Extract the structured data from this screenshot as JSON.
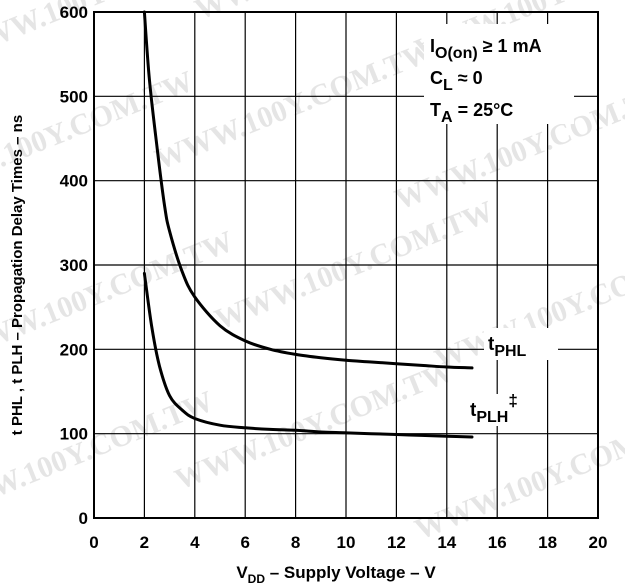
{
  "chart_data": {
    "type": "line",
    "title": "",
    "xlabel": {
      "main": "V",
      "sub": "DD",
      "rest": " – Supply Voltage – V"
    },
    "ylabel": "t PHL , t PLH  – Propagation Delay Times – ns",
    "xlim": [
      0,
      20
    ],
    "ylim": [
      0,
      600
    ],
    "xticks": [
      0,
      2,
      4,
      6,
      8,
      10,
      12,
      14,
      16,
      18,
      20
    ],
    "yticks": [
      0,
      100,
      200,
      300,
      400,
      500,
      600
    ],
    "grid": true,
    "series": [
      {
        "name": "tPHL",
        "label": {
          "main": "t",
          "sub": "PHL",
          "sup": ""
        },
        "x": [
          2,
          2.2,
          2.5,
          2.8,
          3,
          3.5,
          4,
          5,
          6,
          7,
          8,
          9,
          10,
          11,
          12,
          13,
          14,
          15
        ],
        "y": [
          600,
          520,
          440,
          370,
          340,
          292,
          262,
          228,
          210,
          200,
          194,
          190,
          187,
          185,
          183,
          181,
          179,
          178
        ]
      },
      {
        "name": "tPLH‡",
        "label": {
          "main": "t",
          "sub": "PLH",
          "sup": "‡"
        },
        "x": [
          2,
          2.3,
          2.6,
          3,
          3.5,
          4,
          5,
          6,
          7,
          8,
          9,
          10,
          11,
          12,
          13,
          14,
          15
        ],
        "y": [
          290,
          225,
          180,
          145,
          128,
          118,
          110,
          107,
          105,
          104,
          102,
          101,
          100,
          99,
          98,
          97,
          96
        ]
      }
    ],
    "annotations": [
      {
        "main": "I",
        "sub": "O(on)",
        "rest": " ≥ 1 mA"
      },
      {
        "main": "C",
        "sub": "L",
        "rest": " ≈ 0"
      },
      {
        "main": "T",
        "sub": "A",
        "rest": " = 25°C"
      }
    ]
  },
  "watermark": "WWW.100Y.COM.TW"
}
